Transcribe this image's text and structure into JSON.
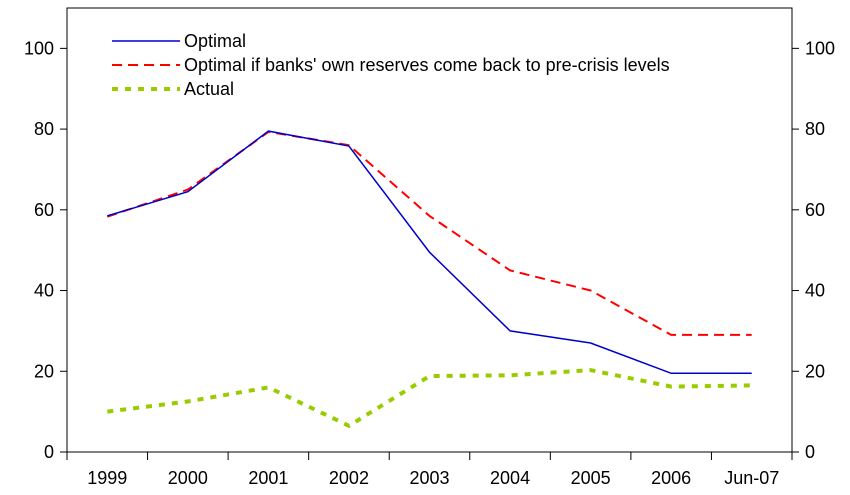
{
  "chart_data": {
    "type": "line",
    "title": "",
    "xlabel": "",
    "ylabel": "",
    "categories": [
      "1999",
      "2000",
      "2001",
      "2002",
      "2003",
      "2004",
      "2005",
      "2006",
      "Jun-07"
    ],
    "ylim": [
      0,
      110
    ],
    "y_ticks": [
      "0",
      "20",
      "40",
      "60",
      "80",
      "100"
    ],
    "y2_ticks": [
      "0",
      "20",
      "40",
      "60",
      "80",
      "100"
    ],
    "grid": false,
    "legend_position": "top-left",
    "series": [
      {
        "name": "Optimal",
        "color": "#0000cc",
        "style": "solid",
        "values": [
          58.5,
          64.5,
          79.5,
          75.8,
          49.5,
          30,
          27,
          19.5,
          19.5
        ]
      },
      {
        "name": "Optimal if banks' own reserves come back to pre-crisis levels",
        "color": "#ff0000",
        "style": "dashed",
        "values": [
          58.3,
          65,
          79.3,
          76,
          58.5,
          45,
          40,
          29,
          29
        ]
      },
      {
        "name": "Actual",
        "color": "#99cc00",
        "style": "dotted",
        "values": [
          10,
          12.5,
          16,
          6.5,
          18.8,
          19,
          20.3,
          16.2,
          16.5
        ]
      }
    ]
  }
}
